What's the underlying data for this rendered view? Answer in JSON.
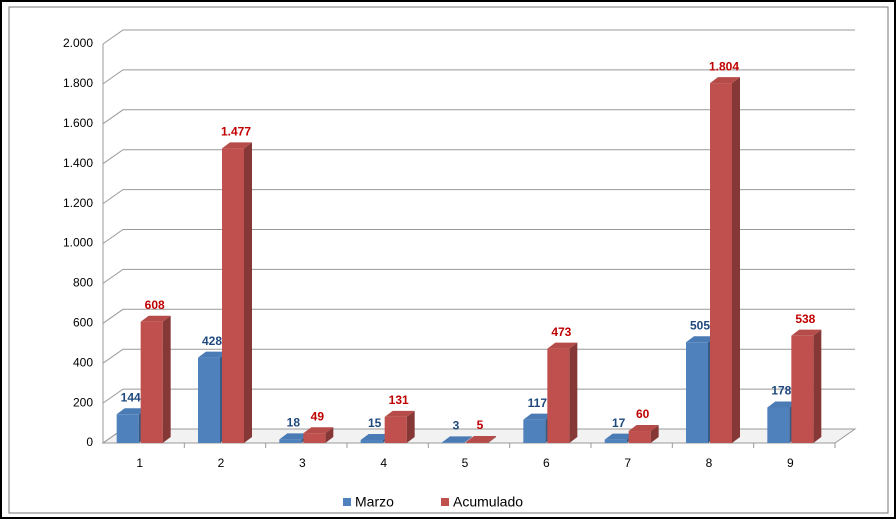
{
  "chart_data": {
    "type": "bar3d",
    "categories": [
      "1",
      "2",
      "3",
      "4",
      "5",
      "6",
      "7",
      "8",
      "9"
    ],
    "series": [
      {
        "name": "Marzo",
        "color": "#4f81bd",
        "label_color": "#1f497d",
        "values": [
          144,
          428,
          18,
          15,
          3,
          117,
          17,
          505,
          178
        ],
        "value_labels": [
          "144",
          "428",
          "18",
          "15",
          "3",
          "117",
          "17",
          "505",
          "178"
        ]
      },
      {
        "name": "Acumulado",
        "color": "#c0504d",
        "label_color": "#c00000",
        "values": [
          608,
          1477,
          49,
          131,
          5,
          473,
          60,
          1804,
          538
        ],
        "value_labels": [
          "608",
          "1.477",
          "49",
          "131",
          "5",
          "473",
          "60",
          "1.804",
          "538"
        ]
      }
    ],
    "ylim": [
      0,
      2000
    ],
    "yticks": [
      0,
      200,
      400,
      600,
      800,
      {
        "value": 1000,
        "label": "1.000"
      },
      {
        "value": 1200,
        "label": "1.200"
      },
      {
        "value": 1400,
        "label": "1.400"
      },
      {
        "value": 1600,
        "label": "1.600"
      },
      {
        "value": 1800,
        "label": "1.800"
      },
      {
        "value": 2000,
        "label": "2.000"
      }
    ],
    "grid": true,
    "legend": "bottom"
  }
}
